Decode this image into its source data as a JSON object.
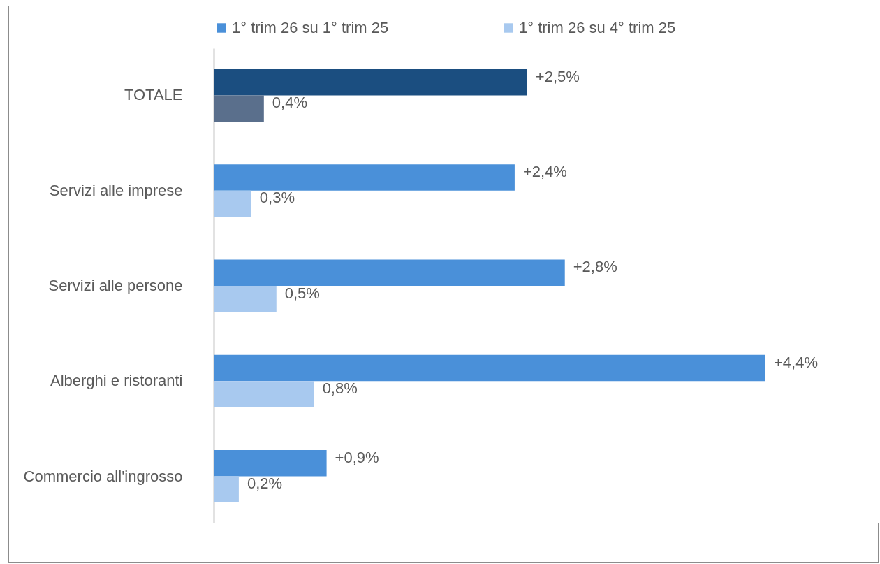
{
  "chart_data": {
    "type": "bar",
    "orientation": "horizontal",
    "legend": "top",
    "categories": [
      "TOTALE",
      "Servizi alle imprese",
      "Servizi alle persone",
      "Alberghi e ristoranti",
      "Commercio all'ingrosso"
    ],
    "series": [
      {
        "name": "1° trim 26 su 1° trim 25",
        "color": "#4a90d9",
        "colors": [
          "#1b4e80",
          "#4a90d9",
          "#4a90d9",
          "#4a90d9",
          "#4a90d9"
        ],
        "values": [
          2.5,
          2.4,
          2.8,
          4.4,
          0.9
        ],
        "value_labels": [
          "+2,5%",
          "+2,4%",
          "+2,8%",
          "+4,4%",
          "+0,9%"
        ]
      },
      {
        "name": "1° trim 26 su 4° trim 25",
        "color": "#a8c9ef",
        "colors": [
          "#5a6f8c",
          "#a8c9ef",
          "#a8c9ef",
          "#a8c9ef",
          "#a8c9ef"
        ],
        "values": [
          0.4,
          0.3,
          0.5,
          0.8,
          0.2
        ],
        "value_labels": [
          "0,4%",
          "0,3%",
          "0,5%",
          "0,8%",
          "0,2%"
        ]
      }
    ]
  }
}
